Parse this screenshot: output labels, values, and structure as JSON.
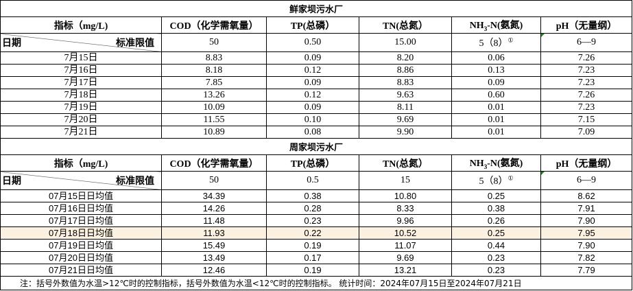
{
  "sections": [
    {
      "plant": "鲜家坝污水厂",
      "headers": [
        "指标（mg/L)",
        "COD（化学需氧量）",
        "TP(总磷）",
        "TN(总氮）",
        "NH3-N(氨氮)",
        "pH（无量纲）"
      ],
      "date_label": "日期",
      "standard_label": "标准限值",
      "standards": [
        "50",
        "0.50",
        "15.00",
        "5（8）",
        "6—9"
      ],
      "footnote_mark": "①",
      "rows": [
        [
          "7月15日",
          "8.83",
          "0.09",
          "8.20",
          "0.06",
          "7.26"
        ],
        [
          "7月16日",
          "8.18",
          "0.12",
          "8.86",
          "0.13",
          "7.23"
        ],
        [
          "7月17日",
          "7.85",
          "0.09",
          "8.83",
          "0.09",
          "7.23"
        ],
        [
          "7月18日",
          "13.26",
          "0.12",
          "9.63",
          "0.60",
          "7.26"
        ],
        [
          "7月19日",
          "10.09",
          "0.09",
          "8.11",
          "0.01",
          "7.23"
        ],
        [
          "7月20日",
          "11.55",
          "0.10",
          "9.69",
          "0.01",
          "7.15"
        ],
        [
          "7月21日",
          "10.89",
          "0.08",
          "9.90",
          "0.01",
          "7.09"
        ]
      ]
    },
    {
      "plant": "周家坝污水厂",
      "headers": [
        "指标（mg/L)",
        "COD（化学需氧量）",
        "TP(总磷）",
        "TN(总氮）",
        "NH3-N(氨氮)",
        "pH（无量纲）"
      ],
      "date_label": "日期",
      "standard_label": "标准限值",
      "standards": [
        "50",
        "0.5",
        "15",
        "5（8）",
        "6—9"
      ],
      "footnote_mark": "①",
      "rows": [
        [
          "07月15日日均值",
          "34.39",
          "0.38",
          "10.80",
          "0.25",
          "8.62"
        ],
        [
          "07月16日日均值",
          "14.26",
          "0.28",
          "8.33",
          "0.38",
          "7.91"
        ],
        [
          "07月17日日均值",
          "11.48",
          "0.23",
          "9.96",
          "0.26",
          "7.90"
        ],
        [
          "07月18日日均值",
          "11.93",
          "0.22",
          "10.52",
          "0.25",
          "7.95"
        ],
        [
          "07月19日日均值",
          "15.49",
          "0.19",
          "11.07",
          "0.44",
          "7.90"
        ],
        [
          "07月20日日均值",
          "13.49",
          "0.17",
          "9.69",
          "0.23",
          "7.82"
        ],
        [
          "07月21日日均值",
          "12.46",
          "0.19",
          "13.21",
          "0.23",
          "7.79"
        ]
      ]
    }
  ],
  "highlight_color": "#fbf1e0",
  "note": "注：括号外数值为水温>12℃时的控制指标，括号外数值为水温<12℃时的控制指标。  统计时间：2024年07月15日至2024年07月21日"
}
